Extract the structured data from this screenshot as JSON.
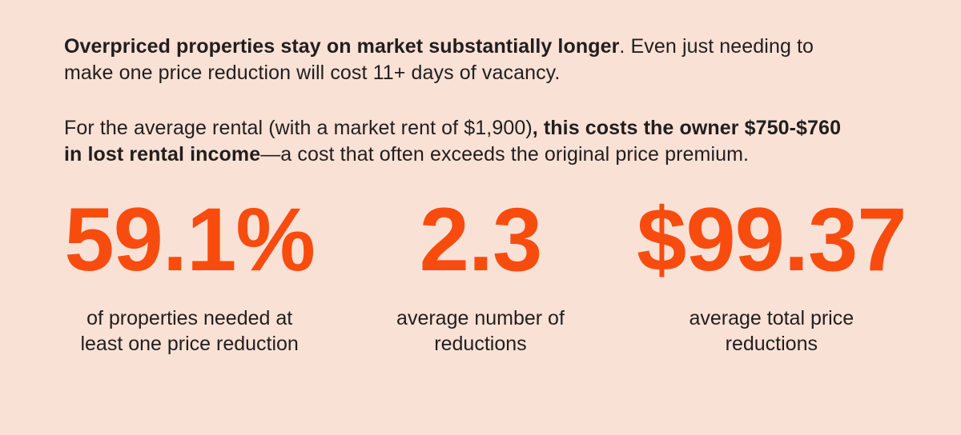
{
  "colors": {
    "background": "#f9e1d6",
    "accent": "#f84c0f",
    "text": "#221e1d"
  },
  "paragraphs": [
    {
      "lines": [
        {
          "segments": [
            {
              "text": "Overpriced properties stay on market substantially longer",
              "bold": true
            },
            {
              "text": ". Even just needing to",
              "bold": false
            }
          ]
        },
        {
          "segments": [
            {
              "text": "make one price reduction will cost 11+ days of vacancy.",
              "bold": false
            }
          ]
        }
      ]
    },
    {
      "lines": [
        {
          "segments": [
            {
              "text": "For the average rental (with a market rent of $1,900)",
              "bold": false
            },
            {
              "text": ", this costs the owner $750-$760",
              "bold": true
            }
          ]
        },
        {
          "segments": [
            {
              "text": "in lost rental income",
              "bold": true
            },
            {
              "text": "—a cost that often exceeds the original price premium.",
              "bold": false
            }
          ]
        }
      ]
    }
  ],
  "stats": [
    {
      "value": "59.1%",
      "caption": "of properties needed at least one price reduction"
    },
    {
      "value": "2.3",
      "caption": "average number of reductions"
    },
    {
      "value": "$99.37",
      "caption": "average total price reductions"
    }
  ],
  "chart_data": {
    "type": "table",
    "title": "Price reduction statistics for overpriced rental properties",
    "stats": [
      {
        "value": "59.1%",
        "label": "of properties needed at least one price reduction"
      },
      {
        "value": 2.3,
        "label": "average number of reductions"
      },
      {
        "value": "$99.37",
        "label": "average total price reductions"
      }
    ],
    "notes": [
      "One price reduction costs 11+ days of vacancy",
      "Average market rent: $1,900",
      "Owner cost in lost rental income: $750-$760"
    ]
  }
}
